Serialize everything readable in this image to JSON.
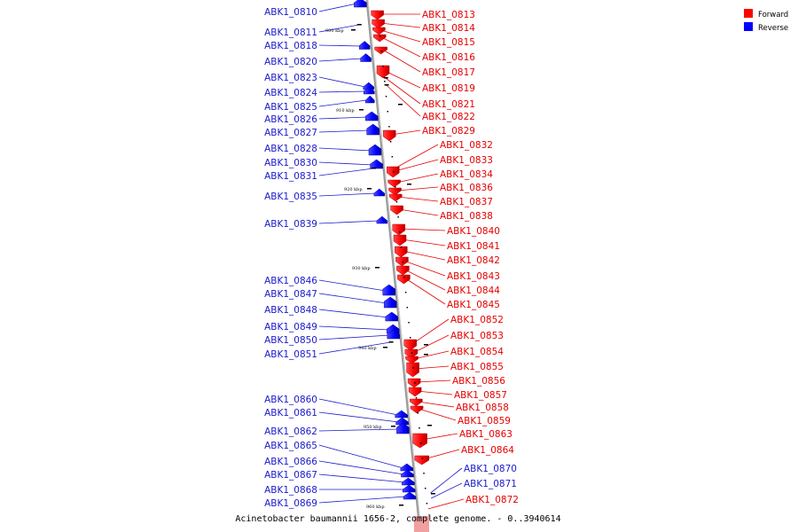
{
  "caption": "Acinetobacter baumannii 1656-2, complete genome. - 0..3940614",
  "legend": [
    {
      "label": "Forward",
      "color": "#ff0000"
    },
    {
      "label": "Reverse",
      "color": "#0000ff"
    }
  ],
  "colors": {
    "forward_fill": "#ff1a1a",
    "forward_dark": "#b00000",
    "reverse_fill": "#1a1aff",
    "reverse_dark": "#0000a0",
    "forward_label": "#e60000",
    "reverse_label": "#1a1acc",
    "backbone": "#9a9a9a"
  },
  "kbp_ticks": [
    "900 kbp",
    "910 kbp",
    "920 kbp",
    "930 kbp",
    "940 kbp",
    "950 kbp",
    "960 kbp"
  ],
  "reverse_genes": [
    "ABK1_0810",
    "ABK1_0811",
    "ABK1_0818",
    "ABK1_0820",
    "ABK1_0823",
    "ABK1_0824",
    "ABK1_0825",
    "ABK1_0826",
    "ABK1_0827",
    "ABK1_0828",
    "ABK1_0830",
    "ABK1_0831",
    "ABK1_0835",
    "ABK1_0839",
    "ABK1_0846",
    "ABK1_0847",
    "ABK1_0848",
    "ABK1_0849",
    "ABK1_0850",
    "ABK1_0851",
    "ABK1_0860",
    "ABK1_0861",
    "ABK1_0862",
    "ABK1_0865",
    "ABK1_0866",
    "ABK1_0867",
    "ABK1_0868",
    "ABK1_0869"
  ],
  "forward_genes": [
    "ABK1_0813",
    "ABK1_0814",
    "ABK1_0815",
    "ABK1_0816",
    "ABK1_0817",
    "ABK1_0819",
    "ABK1_0821",
    "ABK1_0822",
    "ABK1_0829",
    "ABK1_0832",
    "ABK1_0833",
    "ABK1_0834",
    "ABK1_0836",
    "ABK1_0837",
    "ABK1_0838",
    "ABK1_0840",
    "ABK1_0841",
    "ABK1_0842",
    "ABK1_0843",
    "ABK1_0844",
    "ABK1_0845",
    "ABK1_0852",
    "ABK1_0853",
    "ABK1_0854",
    "ABK1_0855",
    "ABK1_0856",
    "ABK1_0857",
    "ABK1_0858",
    "ABK1_0859",
    "ABK1_0863",
    "ABK1_0864"
  ],
  "forward_side_reverse_genes": [
    "ABK1_0870",
    "ABK1_0871"
  ],
  "forward_side_extra": [
    "ABK1_0872"
  ]
}
